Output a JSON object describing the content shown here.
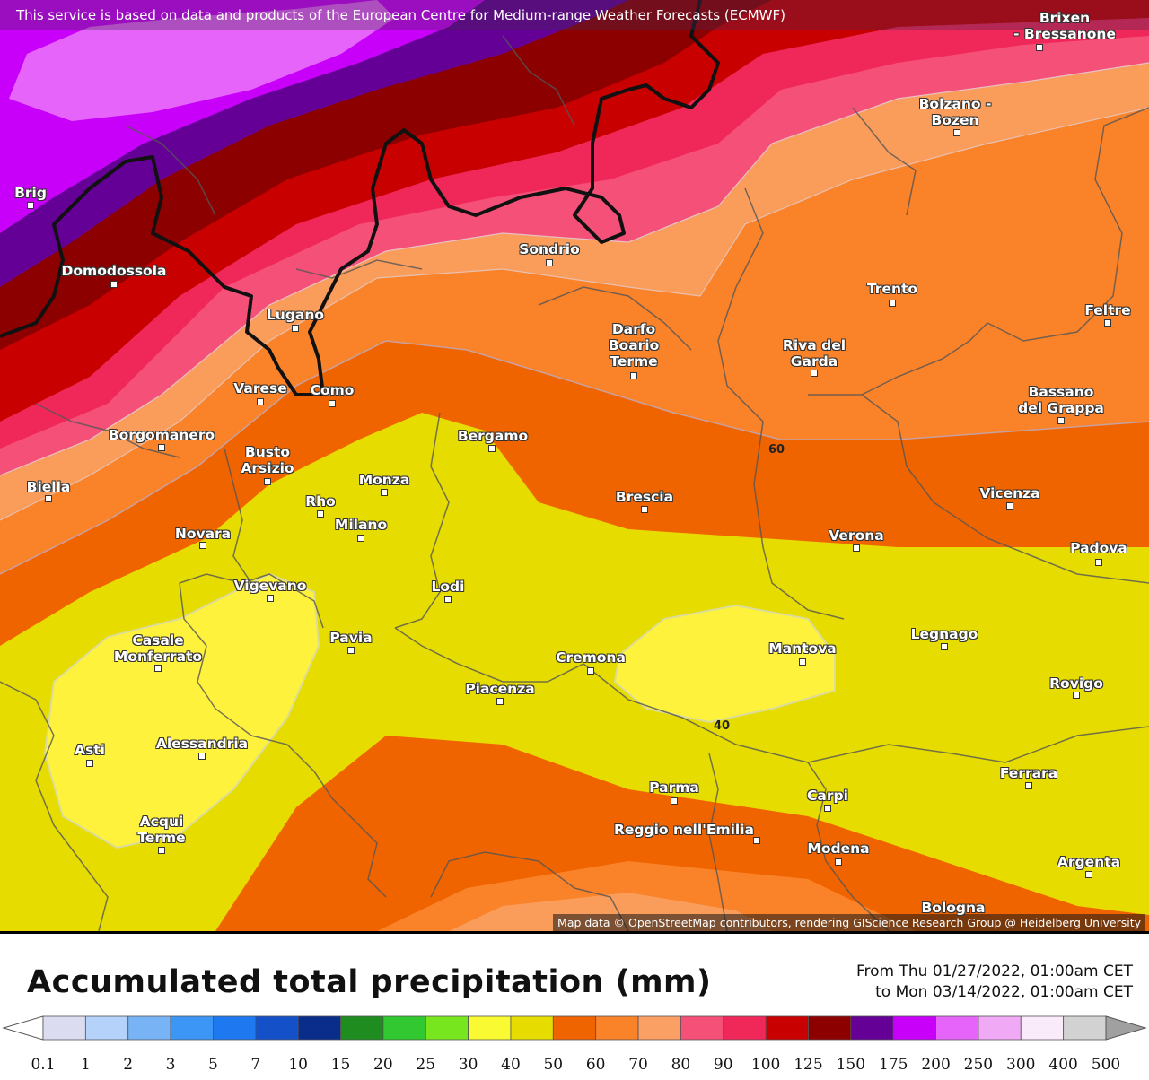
{
  "header": {
    "credit_top": "This service is based on data and products of the European Centre for Medium-range Weather Forecasts (ECMWF)",
    "credit_bottom": "Map data © OpenStreetMap contributors, rendering GIScience Research Group @ Heidelberg University"
  },
  "map": {
    "cities": [
      "Brixen\n- Bressanone",
      "Bolzano -\nBozen",
      "Brig",
      "Domodossola",
      "Sondrio",
      "Trento",
      "Feltre",
      "Lugano",
      "Darfo\nBoario\nTerme",
      "Riva del\nGarda",
      "Varese",
      "Como",
      "Bassano\ndel Grappa",
      "Borgomanero",
      "Bergamo",
      "Busto\nArsizio",
      "Biella",
      "Monza",
      "Brescia",
      "Vicenza",
      "Rho",
      "Milano",
      "Novara",
      "Verona",
      "Padova",
      "Vigevano",
      "Lodi",
      "Casale\nMonferrato",
      "Pavia",
      "Legnago",
      "Mantova",
      "Cremona",
      "Rovigo",
      "Piacenza",
      "Asti",
      "Alessandria",
      "Ferrara",
      "Parma",
      "Carpi",
      "Acqui\nTerme",
      "Reggio nell'Emilia",
      "Modena",
      "Argenta",
      "Bologna"
    ],
    "contour_labels": [
      "60",
      "40"
    ]
  },
  "legend": {
    "title": "Accumulated total precipitation (mm)",
    "from": "From Thu 01/27/2022, 01:00am CET",
    "to": "to Mon 03/14/2022, 01:00am CET",
    "ticks": [
      "0.1",
      "1",
      "2",
      "3",
      "5",
      "7",
      "10",
      "15",
      "20",
      "25",
      "30",
      "40",
      "50",
      "60",
      "70",
      "80",
      "90",
      "100",
      "125",
      "150",
      "175",
      "200",
      "250",
      "300",
      "400",
      "500"
    ],
    "colors": [
      "#dcdcf0",
      "#b4d2fa",
      "#78b4f5",
      "#3c96f5",
      "#1e78f0",
      "#1450c8",
      "#0a2d8c",
      "#1e8c1e",
      "#32c832",
      "#78e61e",
      "#fafa32",
      "#e6dc00",
      "#f06400",
      "#fa8228",
      "#faa064",
      "#f55078",
      "#f0285a",
      "#c80000",
      "#8c0000",
      "#640096",
      "#c800fa",
      "#e664fa",
      "#f0aaf5",
      "#faebfa",
      "#d2d2d2"
    ],
    "under_color": "#ffffff",
    "over_color": "#a0a0a0"
  }
}
